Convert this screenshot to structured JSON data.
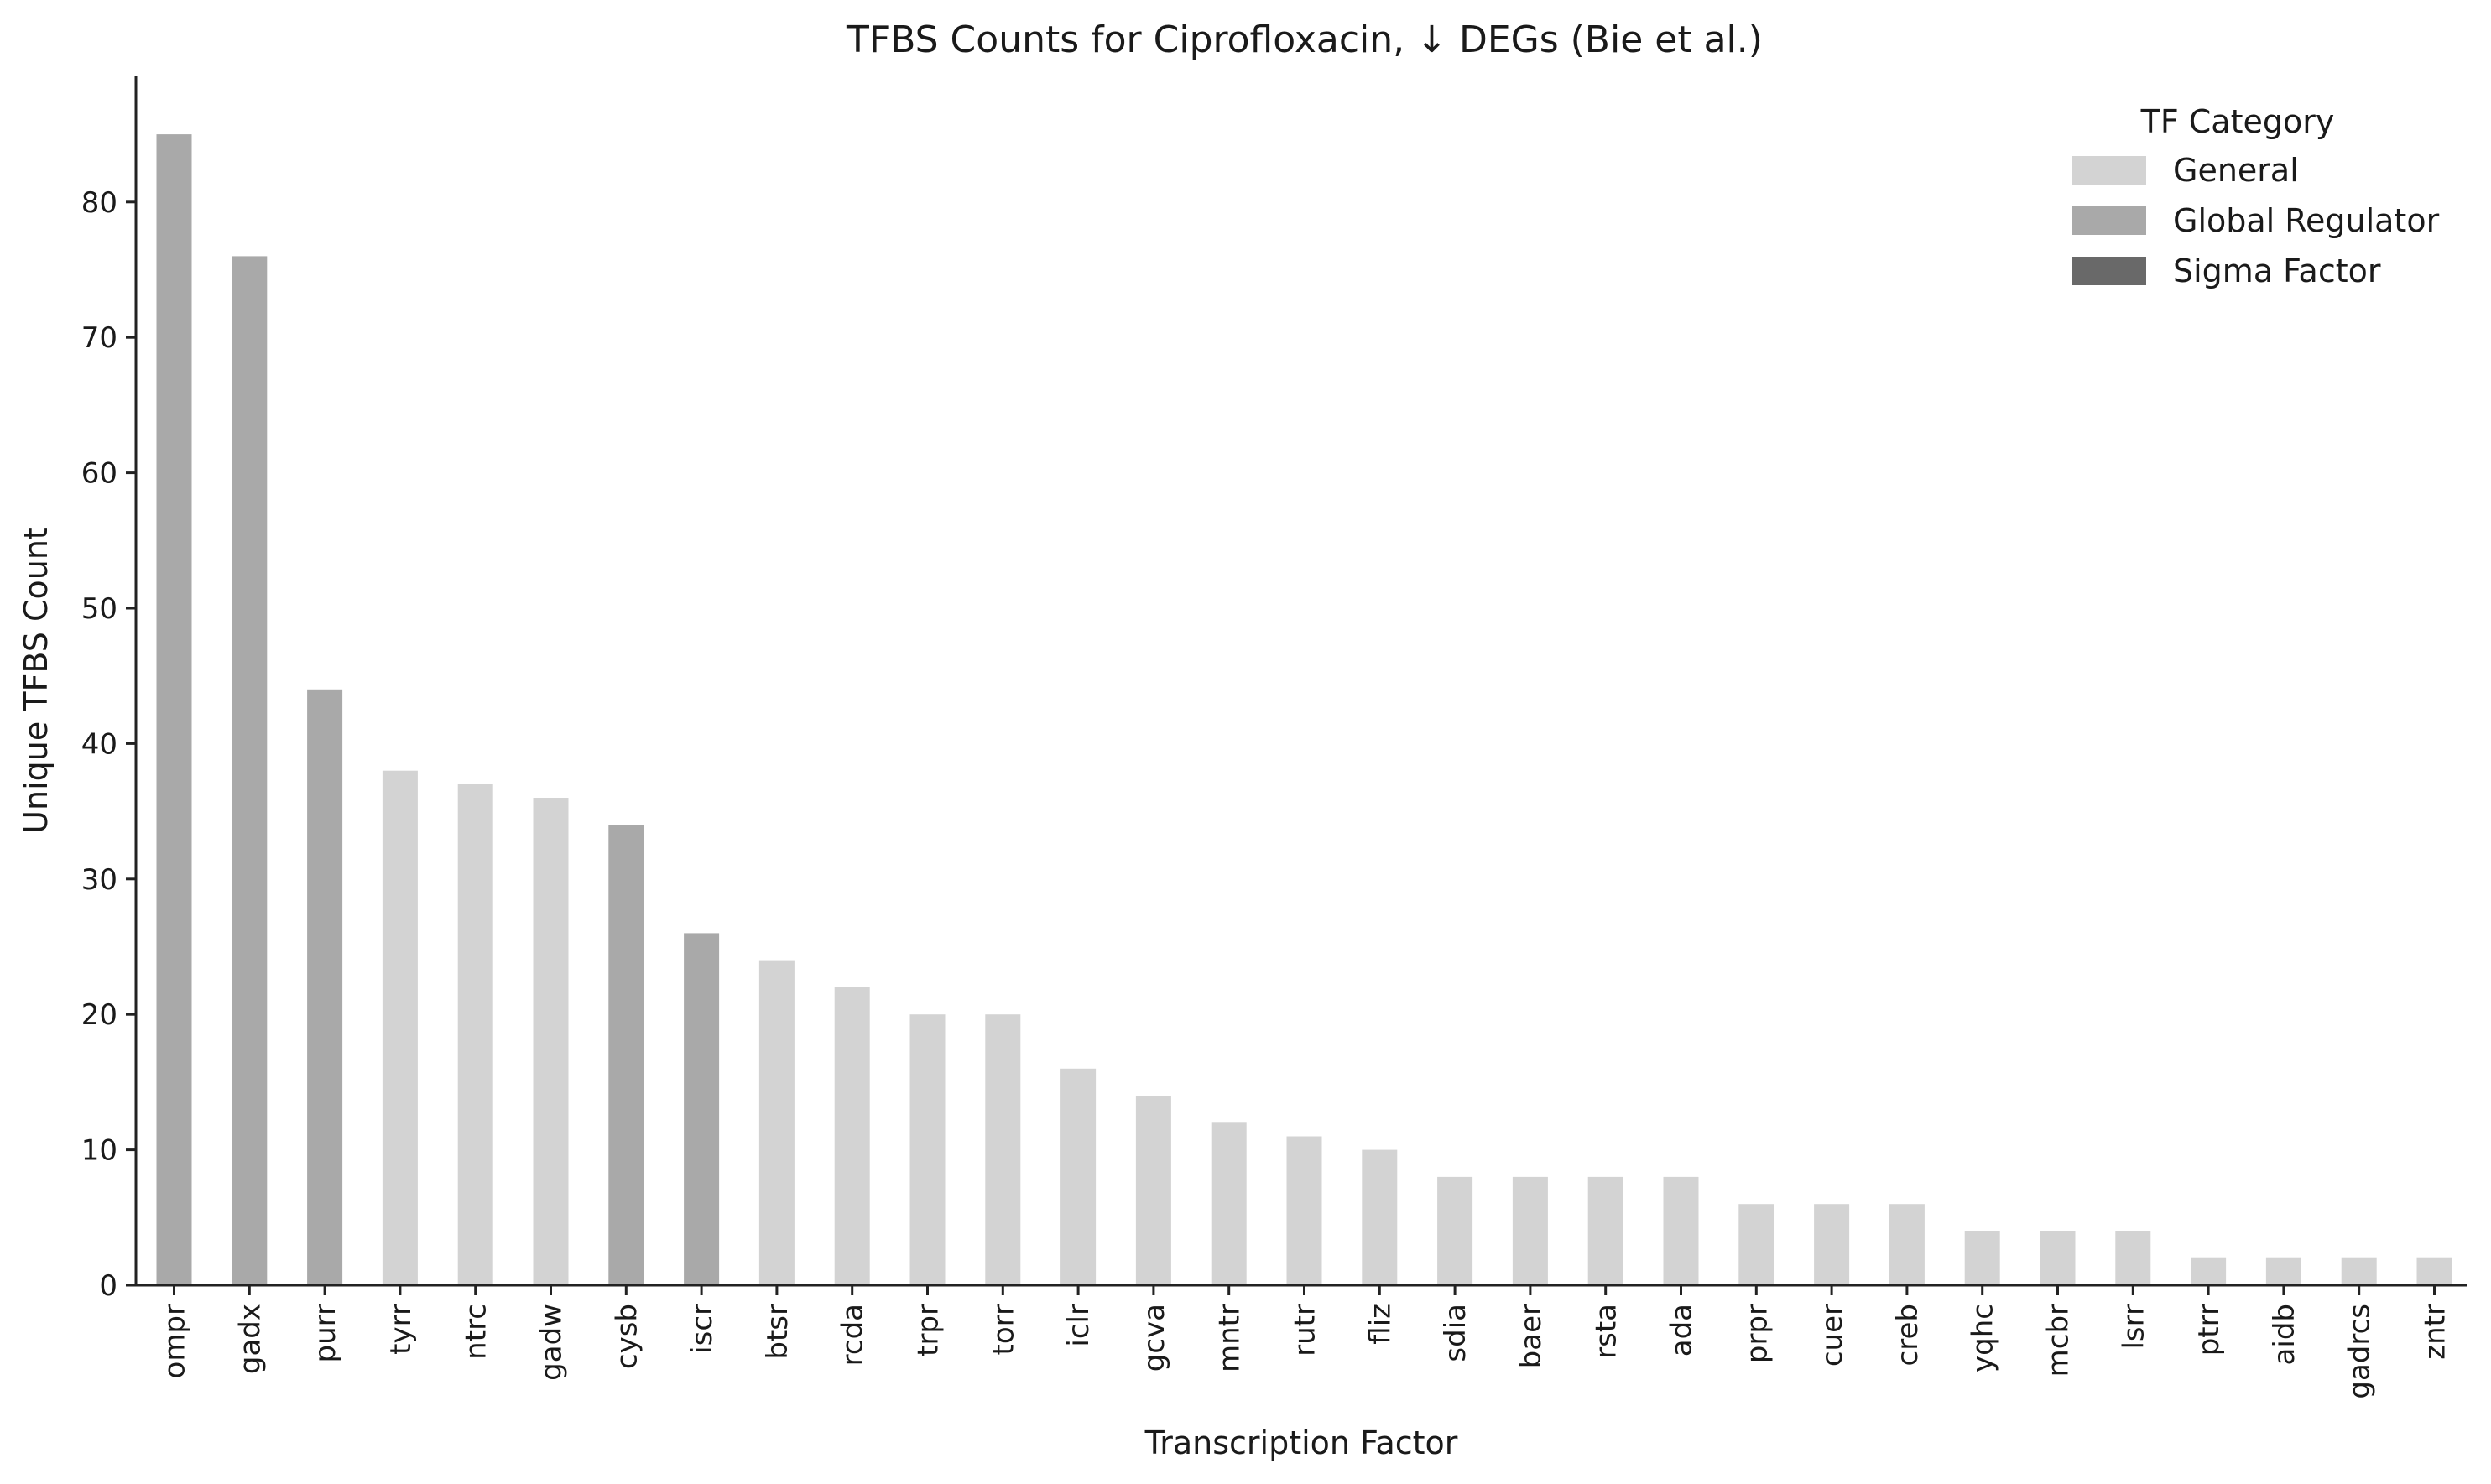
{
  "chart_data": {
    "type": "bar",
    "title": "TFBS Counts for Ciprofloxacin, ↓ DEGs (Bie et al.)",
    "xlabel": "Transcription Factor",
    "ylabel": "Unique TFBS Count",
    "ylim": [
      0,
      90
    ],
    "yticks": [
      0,
      10,
      20,
      30,
      40,
      50,
      60,
      70,
      80
    ],
    "grid": false,
    "legend": {
      "title": "TF Category",
      "placement": "top-right",
      "entries": [
        {
          "label": "General",
          "color": "#d3d3d3"
        },
        {
          "label": "Global Regulator",
          "color": "#a9a9a9"
        },
        {
          "label": "Sigma Factor",
          "color": "#696969"
        }
      ]
    },
    "categories": [
      "ompr",
      "gadx",
      "purr",
      "tyrr",
      "ntrc",
      "gadw",
      "cysb",
      "iscr",
      "btsr",
      "rcda",
      "trpr",
      "torr",
      "iclr",
      "gcva",
      "mntr",
      "rutr",
      "fliz",
      "sdia",
      "baer",
      "rsta",
      "ada",
      "prpr",
      "cuer",
      "creb",
      "yqhc",
      "mcbr",
      "lsrr",
      "ptrr",
      "aidb",
      "gadrcs",
      "zntr"
    ],
    "values": [
      85,
      76,
      44,
      38,
      37,
      36,
      34,
      26,
      24,
      22,
      20,
      20,
      16,
      14,
      12,
      11,
      10,
      8,
      8,
      8,
      8,
      6,
      6,
      6,
      4,
      4,
      4,
      2,
      2,
      2,
      2
    ],
    "bar_category": [
      "Global Regulator",
      "Global Regulator",
      "Global Regulator",
      "General",
      "General",
      "General",
      "Global Regulator",
      "Global Regulator",
      "General",
      "General",
      "General",
      "General",
      "General",
      "General",
      "General",
      "General",
      "General",
      "General",
      "General",
      "General",
      "General",
      "General",
      "General",
      "General",
      "General",
      "General",
      "General",
      "General",
      "General",
      "General",
      "General"
    ]
  }
}
